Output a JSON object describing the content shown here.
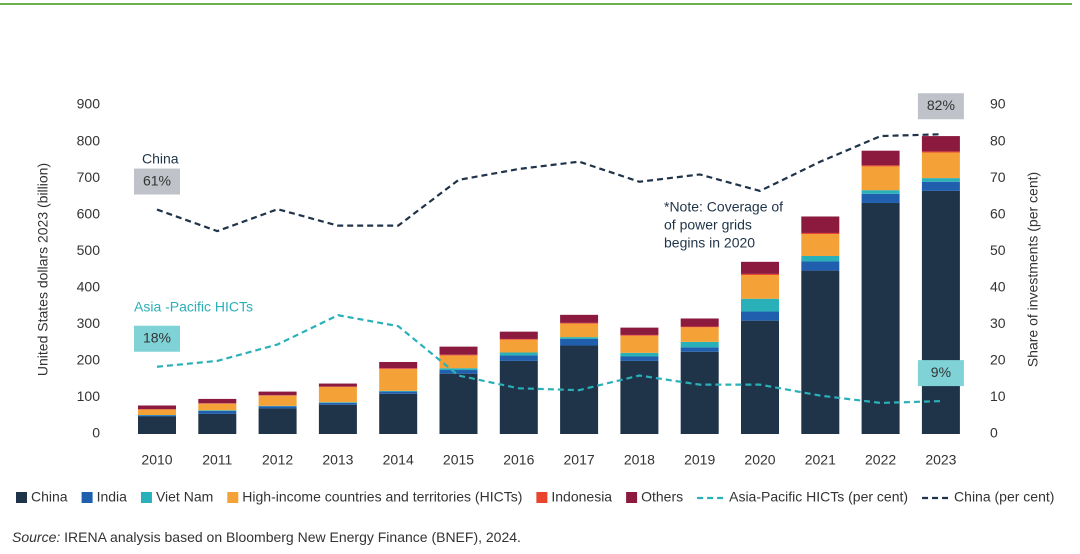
{
  "chart_data": {
    "type": "bar",
    "categories": [
      "2010",
      "2011",
      "2012",
      "2013",
      "2014",
      "2015",
      "2016",
      "2017",
      "2018",
      "2019",
      "2020",
      "2021",
      "2022",
      "2023"
    ],
    "series": [
      {
        "name": "China",
        "color": "#1f3349",
        "values": [
          48,
          55,
          70,
          80,
          110,
          165,
          200,
          242,
          200,
          225,
          310,
          447,
          632,
          665
        ]
      },
      {
        "name": "India",
        "color": "#1f5fae",
        "values": [
          3,
          8,
          6,
          5,
          6,
          10,
          15,
          18,
          12,
          12,
          25,
          25,
          25,
          25
        ]
      },
      {
        "name": "Viet Nam",
        "color": "#2ab0b8",
        "values": [
          1,
          2,
          1,
          2,
          2,
          5,
          8,
          5,
          10,
          15,
          35,
          15,
          10,
          10
        ]
      },
      {
        "name": "High-income countries and territories (HICTs)",
        "color": "#f4a237",
        "values": [
          15,
          18,
          28,
          42,
          60,
          35,
          35,
          37,
          47,
          40,
          65,
          60,
          65,
          70
        ]
      },
      {
        "name": "Indonesia",
        "color": "#e8442e",
        "values": [
          1,
          1,
          1,
          1,
          2,
          2,
          2,
          2,
          2,
          2,
          3,
          3,
          3,
          3
        ]
      },
      {
        "name": "Others",
        "color": "#8b1a3e",
        "values": [
          10,
          12,
          10,
          8,
          17,
          22,
          20,
          22,
          20,
          22,
          33,
          45,
          40,
          42
        ]
      },
      {
        "name": "Asia-Pacific HICTs (per cent)",
        "type": "line",
        "axis": "y2",
        "color": "#2ab0b8",
        "values": [
          18.4,
          20,
          24.5,
          32.5,
          29.5,
          16,
          12.5,
          12,
          16,
          13.5,
          13.5,
          10.5,
          8.5,
          9
        ],
        "value_labels": [
          "18%",
          null,
          null,
          null,
          null,
          null,
          null,
          null,
          null,
          null,
          null,
          null,
          null,
          "9%"
        ]
      },
      {
        "name": "China (per cent)",
        "type": "line",
        "axis": "y2",
        "color": "#1f3349",
        "values": [
          61.4,
          55.5,
          61.5,
          57,
          57,
          69.5,
          72.5,
          74.5,
          69,
          71,
          66.5,
          74.5,
          81.5,
          82
        ],
        "value_labels": [
          "61%",
          null,
          null,
          null,
          null,
          null,
          null,
          null,
          null,
          null,
          null,
          null,
          null,
          "82%"
        ]
      }
    ],
    "ylabel": "United States dollars 2023 (billion)",
    "y2label": "Share of investments (per cent)",
    "ylim": [
      0,
      900
    ],
    "yticks": [
      0,
      100,
      200,
      300,
      400,
      500,
      600,
      700,
      800,
      900
    ],
    "y2lim": [
      0,
      90
    ],
    "y2ticks": [
      0,
      10,
      20,
      30,
      40,
      50,
      60,
      70,
      80,
      90
    ],
    "grid": false,
    "legend": "bottom",
    "annotations": [
      "China",
      "Asia  -Pacific HICTs",
      "*Note: Coverage of",
      "of power grids",
      "begins in 2020"
    ],
    "source_label": "Source:",
    "source": " IRENA analysis based on Bloomberg New Energy Finance (BNEF), 2024."
  }
}
